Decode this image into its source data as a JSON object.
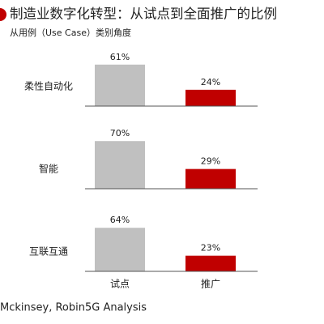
{
  "chart_data": {
    "type": "bar",
    "title": "制造业数字化转型：从试点到全面推广的比例",
    "subtitle": "从用例（Use Case）类别角度",
    "categories": [
      "试点",
      "推广"
    ],
    "colors": [
      "#c0c0c0",
      "#c00000"
    ],
    "series": [
      {
        "name": "柔性自动化",
        "values": [
          61,
          24
        ],
        "value_labels": [
          "61%",
          "24%"
        ]
      },
      {
        "name": "智能",
        "values": [
          70,
          29
        ],
        "value_labels": [
          "70%",
          "29%"
        ]
      },
      {
        "name": "互联互通",
        "values": [
          64,
          23
        ],
        "value_labels": [
          "64%",
          "23%"
        ]
      }
    ],
    "source": "Mckinsey, Robin5G Analysis"
  }
}
